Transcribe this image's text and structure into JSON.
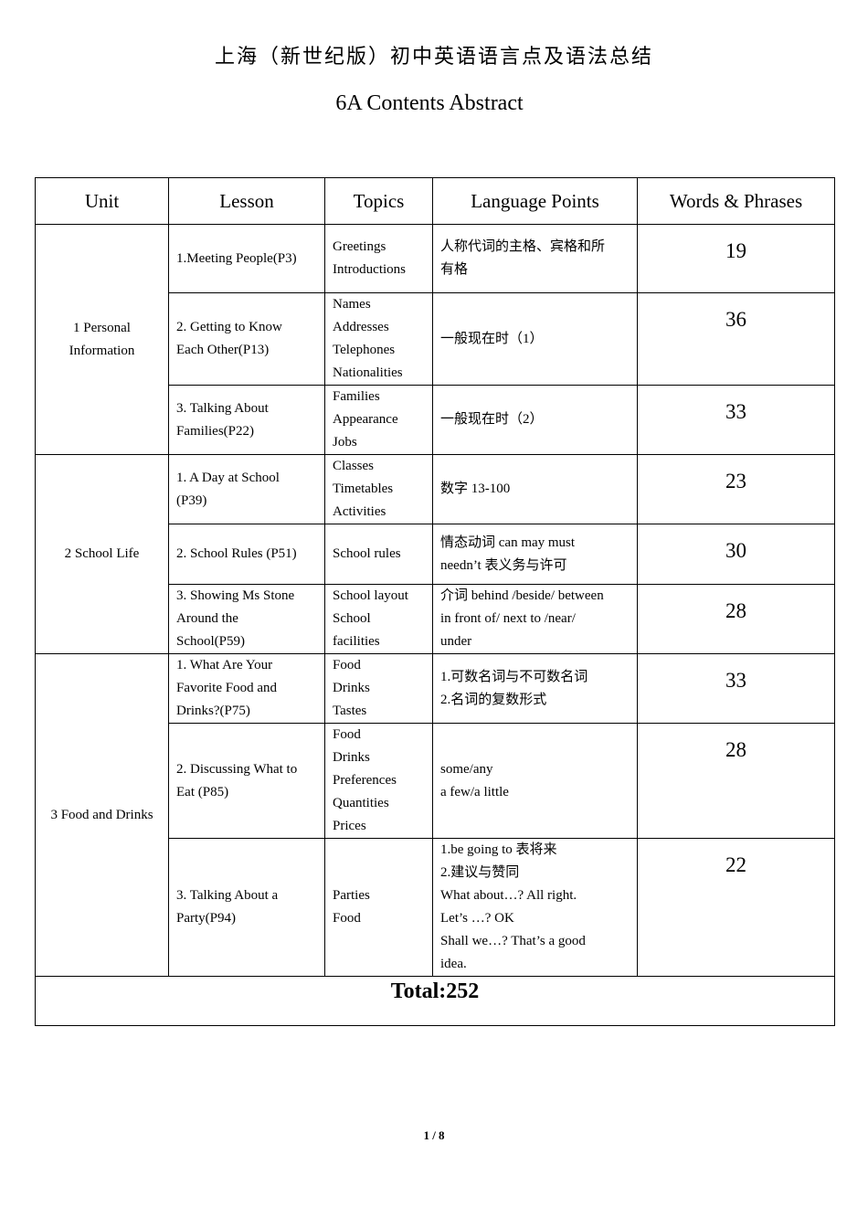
{
  "title_cn": "上海（新世纪版）初中英语语言点及语法总结",
  "title_en": "6A Contents Abstract",
  "headers": [
    "Unit",
    "Lesson",
    "Topics",
    "Language Points",
    "Words & Phrases"
  ],
  "units": [
    {
      "name": "1 Personal\nInformation",
      "lessons": [
        {
          "lesson": "1.Meeting People(P3)",
          "topics": "Greetings\nIntroductions",
          "points": "人称代词的主格、宾格和所\n有格",
          "words": "19"
        },
        {
          "lesson": "2. Getting to Know\nEach Other(P13)",
          "topics": "Names\nAddresses\nTelephones\nNationalities",
          "points": "一般现在时（1）",
          "words": "36"
        },
        {
          "lesson": "3. Talking About\nFamilies(P22)",
          "topics": "Families\nAppearance\nJobs",
          "points": "一般现在时（2）",
          "words": "33"
        }
      ]
    },
    {
      "name": "2 School Life",
      "lessons": [
        {
          "lesson": "1. A Day at School\n(P39)",
          "topics": "Classes\nTimetables\nActivities",
          "points": "数字 13-100",
          "words": "23"
        },
        {
          "lesson": "2. School Rules (P51)",
          "topics": "School rules",
          "points": "情态动词 can may must\nneedn’t 表义务与许可",
          "words": "30"
        },
        {
          "lesson": "3. Showing Ms Stone\nAround the\nSchool(P59)",
          "topics": "School layout\nSchool\nfacilities",
          "points": "介词  behind /beside/ between\nin front of/ next to /near/\nunder",
          "words": "28"
        }
      ]
    },
    {
      "name": "3 Food and Drinks",
      "lessons": [
        {
          "lesson": "1. What Are Your\nFavorite Food and\nDrinks?(P75)",
          "topics": "Food\nDrinks\nTastes",
          "points": "1.可数名词与不可数名词\n2.名词的复数形式",
          "words": "33"
        },
        {
          "lesson": "2. Discussing What to\nEat (P85)",
          "topics": "Food\nDrinks\nPreferences\nQuantities\nPrices",
          "points": "some/any\na few/a little",
          "words": "28"
        },
        {
          "lesson": "3. Talking About a\nParty(P94)",
          "topics": "Parties\nFood",
          "points": "1.be going to 表将来\n2.建议与赞同\nWhat about…? All right.\nLet’s …? OK\nShall we…? That’s a good\nidea.",
          "words": "22"
        }
      ]
    }
  ],
  "total": "Total:252",
  "page_number": "1 / 8"
}
